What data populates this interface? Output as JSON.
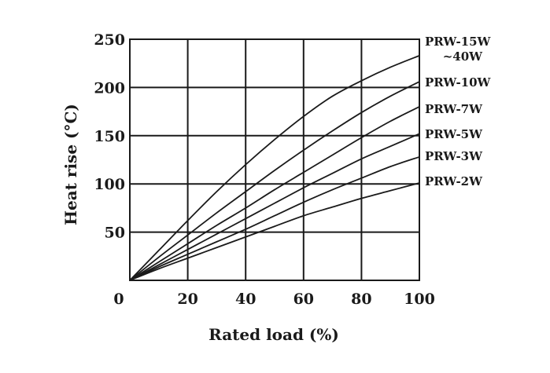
{
  "chart_data": {
    "type": "line",
    "title": "",
    "xlabel": "Rated load (%)",
    "ylabel": "Heat rise (°C)",
    "xlim": [
      0,
      100
    ],
    "ylim": [
      0,
      250
    ],
    "grid": true,
    "x_ticks": [
      {
        "value": 0,
        "label": "0"
      },
      {
        "value": 20,
        "label": "20"
      },
      {
        "value": 40,
        "label": "40"
      },
      {
        "value": 60,
        "label": "60"
      },
      {
        "value": 80,
        "label": "80"
      },
      {
        "value": 100,
        "label": "100"
      }
    ],
    "y_ticks": [
      {
        "value": 50,
        "label": "50"
      },
      {
        "value": 100,
        "label": "100"
      },
      {
        "value": 150,
        "label": "150"
      },
      {
        "value": 200,
        "label": "200"
      },
      {
        "value": 250,
        "label": "250"
      }
    ],
    "x": [
      0,
      10,
      20,
      30,
      40,
      50,
      60,
      70,
      80,
      90,
      100
    ],
    "series": [
      {
        "name": "PRW-15W",
        "name_line2": "~40W",
        "values": [
          0,
          31,
          62,
          92,
          120,
          146,
          170,
          191,
          207,
          221,
          233
        ]
      },
      {
        "name": "PRW-10W",
        "values": [
          0,
          24,
          47,
          70,
          92,
          114,
          135,
          155,
          174,
          191,
          206
        ]
      },
      {
        "name": "PRW-7W",
        "values": [
          0,
          19,
          38,
          57,
          75,
          94,
          112,
          130,
          148,
          165,
          180
        ]
      },
      {
        "name": "PRW-5W",
        "values": [
          0,
          16,
          32,
          48,
          64,
          80,
          96,
          111,
          126,
          139,
          152
        ]
      },
      {
        "name": "PRW-3W",
        "values": [
          0,
          14,
          27,
          40,
          53,
          67,
          81,
          94,
          106,
          118,
          128
        ]
      },
      {
        "name": "PRW-2W",
        "values": [
          0,
          12,
          23,
          34,
          45,
          56,
          67,
          76,
          85,
          93,
          101
        ]
      }
    ]
  }
}
